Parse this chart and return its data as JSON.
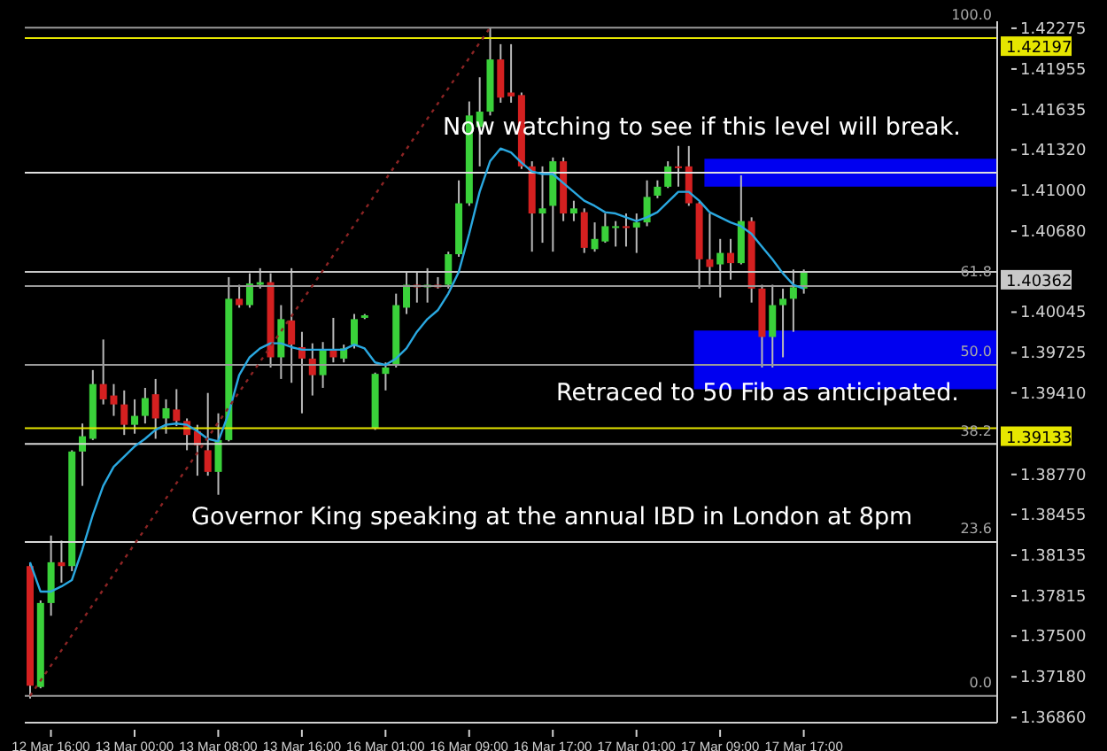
{
  "chart_data": {
    "type": "candlestick",
    "categories": [
      null,
      null,
      "12 Mar 16:00",
      null,
      null,
      null,
      null,
      null,
      null,
      null,
      "13 Mar 00:00",
      null,
      null,
      null,
      null,
      null,
      null,
      null,
      "13 Mar 08:00",
      null,
      null,
      null,
      null,
      null,
      null,
      null,
      "13 Mar 16:00",
      null,
      null,
      null,
      null,
      null,
      null,
      null,
      "16 Mar 01:00",
      null,
      null,
      null,
      null,
      null,
      null,
      null,
      "16 Mar 09:00",
      null,
      null,
      null,
      null,
      null,
      null,
      null,
      "16 Mar 17:00",
      null,
      null,
      null,
      null,
      null,
      null,
      null,
      "17 Mar 01:00",
      null,
      null,
      null,
      null,
      null,
      null,
      null,
      "17 Mar 09:00",
      null,
      null,
      null,
      null,
      null,
      null,
      null,
      "17 Mar 17:00",
      null,
      null,
      null,
      null,
      null,
      null,
      null,
      null,
      null,
      null,
      null,
      null,
      null,
      null,
      null,
      null,
      null,
      null
    ],
    "ohlc": [
      [
        1.3805,
        1.3808,
        1.3701,
        1.3711
      ],
      [
        1.371,
        1.3778,
        1.3709,
        1.3776
      ],
      [
        1.3776,
        1.3829,
        1.3766,
        1.3808
      ],
      [
        1.3808,
        1.3825,
        1.3792,
        1.3805
      ],
      [
        1.3805,
        1.3896,
        1.3801,
        1.3895
      ],
      [
        1.3895,
        1.3917,
        1.3868,
        1.3907
      ],
      [
        1.3905,
        1.3959,
        1.3904,
        1.3948
      ],
      [
        1.3948,
        1.3983,
        1.3932,
        1.3936
      ],
      [
        1.3939,
        1.3948,
        1.3923,
        1.3932
      ],
      [
        1.3932,
        1.3943,
        1.3908,
        1.3916
      ],
      [
        1.3916,
        1.3936,
        1.3909,
        1.3923
      ],
      [
        1.3923,
        1.3945,
        1.3917,
        1.3937
      ],
      [
        1.394,
        1.3952,
        1.3905,
        1.3921
      ],
      [
        1.3921,
        1.3936,
        1.3909,
        1.3929
      ],
      [
        1.3928,
        1.3944,
        1.3915,
        1.3919
      ],
      [
        1.3919,
        1.3921,
        1.3896,
        1.3908
      ],
      [
        1.3911,
        1.3916,
        1.3876,
        1.39
      ],
      [
        1.3896,
        1.3941,
        1.3876,
        1.3879
      ],
      [
        1.3879,
        1.3925,
        1.3861,
        1.3904
      ],
      [
        1.3904,
        1.4032,
        1.3903,
        1.4015
      ],
      [
        1.4015,
        1.4026,
        1.4008,
        1.401
      ],
      [
        1.401,
        1.4035,
        1.4008,
        1.4027
      ],
      [
        1.4026,
        1.4039,
        1.4023,
        1.4028
      ],
      [
        1.4028,
        1.4035,
        1.3961,
        1.3969
      ],
      [
        1.3969,
        1.401,
        1.3952,
        1.3999
      ],
      [
        1.3998,
        1.4039,
        1.3949,
        1.3979
      ],
      [
        1.3977,
        1.3989,
        1.3925,
        1.3968
      ],
      [
        1.3968,
        1.398,
        1.3939,
        1.3955
      ],
      [
        1.3955,
        1.3981,
        1.3945,
        1.3975
      ],
      [
        1.3975,
        1.4,
        1.3965,
        1.3969
      ],
      [
        1.3968,
        1.3979,
        1.3965,
        1.3976
      ],
      [
        1.3979,
        1.4003,
        1.3976,
        1.3999
      ],
      [
        1.4,
        1.4003,
        1.3999,
        1.4002
      ],
      [
        1.3913,
        1.3957,
        1.3912,
        1.3956
      ],
      [
        1.3956,
        1.3965,
        1.3943,
        1.3961
      ],
      [
        1.3963,
        1.4019,
        1.3961,
        1.401
      ],
      [
        1.4008,
        1.4036,
        1.4003,
        1.4026
      ],
      [
        1.4026,
        1.4036,
        1.4012,
        1.4024
      ],
      [
        1.4024,
        1.4039,
        1.4012,
        1.4026
      ],
      [
        1.4026,
        1.4032,
        1.4023,
        1.4024
      ],
      [
        1.4026,
        1.4052,
        1.4023,
        1.405
      ],
      [
        1.405,
        1.4108,
        1.4048,
        1.409
      ],
      [
        1.409,
        1.417,
        1.4088,
        1.4159
      ],
      [
        1.415,
        1.4189,
        1.4119,
        1.4162
      ],
      [
        1.4162,
        1.4228,
        1.4159,
        1.4203
      ],
      [
        1.4203,
        1.4215,
        1.4169,
        1.4173
      ],
      [
        1.4177,
        1.4215,
        1.4169,
        1.4174
      ],
      [
        1.4175,
        1.4177,
        1.4117,
        1.4119
      ],
      [
        1.4119,
        1.4123,
        1.4052,
        1.4082
      ],
      [
        1.4082,
        1.4119,
        1.4059,
        1.4086
      ],
      [
        1.4088,
        1.4126,
        1.4052,
        1.4123
      ],
      [
        1.4123,
        1.4126,
        1.4076,
        1.4082
      ],
      [
        1.4082,
        1.4092,
        1.4076,
        1.4086
      ],
      [
        1.4083,
        1.4086,
        1.4051,
        1.4055
      ],
      [
        1.4054,
        1.4075,
        1.4052,
        1.4062
      ],
      [
        1.406,
        1.4082,
        1.4059,
        1.4072
      ],
      [
        1.4071,
        1.4076,
        1.4056,
        1.4072
      ],
      [
        1.4072,
        1.4082,
        1.4056,
        1.4071
      ],
      [
        1.4071,
        1.4082,
        1.4051,
        1.4075
      ],
      [
        1.4075,
        1.4108,
        1.4072,
        1.4095
      ],
      [
        1.4096,
        1.4108,
        1.4094,
        1.4103
      ],
      [
        1.4103,
        1.4123,
        1.4102,
        1.4119
      ],
      [
        1.4119,
        1.4135,
        1.4103,
        1.4118
      ],
      [
        1.4119,
        1.4135,
        1.4088,
        1.409
      ],
      [
        1.409,
        1.4091,
        1.4023,
        1.4046
      ],
      [
        1.4046,
        1.4082,
        1.4026,
        1.404
      ],
      [
        1.4042,
        1.4062,
        1.4016,
        1.4051
      ],
      [
        1.4051,
        1.4062,
        1.403,
        1.4043
      ],
      [
        1.4043,
        1.4112,
        1.4042,
        1.4076
      ],
      [
        1.4076,
        1.4079,
        1.4012,
        1.4023
      ],
      [
        1.4023,
        1.4026,
        1.3961,
        1.3985
      ],
      [
        1.3985,
        1.4026,
        1.3961,
        1.401
      ],
      [
        1.401,
        1.4023,
        1.3969,
        1.4015
      ],
      [
        1.4015,
        1.4038,
        1.3989,
        1.4024
      ],
      [
        1.4023,
        1.4038,
        1.4019,
        1.4036
      ],
      null,
      null,
      null,
      null,
      null,
      null,
      null,
      null,
      null,
      null,
      null,
      null,
      null,
      null,
      null,
      null,
      null,
      null
    ],
    "series": [
      {
        "type": "line",
        "color": "#2aa8e0",
        "line_style": "solid",
        "values": [
          1.3808,
          1.3785,
          1.3785,
          1.3789,
          1.3794,
          1.3818,
          1.3845,
          1.3868,
          1.3883,
          1.3891,
          1.3899,
          1.3905,
          1.3912,
          1.3916,
          1.3917,
          1.3916,
          1.3911,
          1.3905,
          1.3903,
          1.3925,
          1.3955,
          1.3969,
          1.3976,
          1.398,
          1.398,
          1.3977,
          1.3975,
          1.3975,
          1.3975,
          1.3975,
          1.3975,
          1.3979,
          1.3976,
          1.3965,
          1.3963,
          1.3968,
          1.3976,
          1.3989,
          1.3999,
          1.4006,
          1.4019,
          1.4036,
          1.4066,
          1.4099,
          1.4123,
          1.4133,
          1.413,
          1.4122,
          1.4115,
          1.4113,
          1.4113,
          1.4106,
          1.4099,
          1.4092,
          1.4088,
          1.4083,
          1.4082,
          1.4079,
          1.4076,
          1.4079,
          1.4083,
          1.4091,
          1.4099,
          1.4099,
          1.4092,
          1.4083,
          1.4079,
          1.4075,
          1.4072,
          1.4066,
          1.4056,
          1.4046,
          1.4035,
          1.4026,
          1.4023,
          null,
          null,
          null,
          null,
          null,
          null,
          null,
          null,
          null,
          null,
          null,
          null,
          null,
          null,
          null,
          null,
          null,
          null
        ]
      },
      {
        "type": "line",
        "color": "#8c2424",
        "line_style": "dotted",
        "values": [
          1.3703,
          null,
          null,
          null,
          null,
          null,
          null,
          null,
          null,
          null,
          null,
          null,
          null,
          null,
          null,
          null,
          null,
          null,
          null,
          null,
          null,
          null,
          null,
          null,
          null,
          null,
          null,
          null,
          null,
          null,
          null,
          null,
          null,
          null,
          null,
          null,
          null,
          null,
          null,
          null,
          null,
          null,
          null,
          null,
          1.4228,
          null,
          null,
          null,
          null,
          null,
          null,
          null,
          null,
          null,
          null,
          null,
          null,
          null,
          null,
          null,
          null,
          null,
          null,
          null,
          null,
          null,
          null,
          null,
          null,
          null,
          null,
          null,
          null,
          null,
          null,
          null,
          null,
          null,
          null,
          null,
          null,
          null,
          null,
          null,
          null,
          null,
          null,
          null,
          null,
          null,
          null,
          null,
          null
        ]
      }
    ],
    "ylim": [
      1.3682,
      1.4233
    ],
    "yticks": [
      1.42275,
      1.41955,
      1.41635,
      {
        "value": 1.4132,
        "label": "1.41320"
      },
      {
        "value": 1.41,
        "label": "1.41000"
      },
      {
        "value": 1.4068,
        "label": "1.40680"
      },
      1.40045,
      1.39725,
      {
        "value": 1.3941,
        "label": "1.39410"
      },
      {
        "value": 1.3877,
        "label": "1.38770"
      },
      1.38455,
      1.38135,
      1.37815,
      {
        "value": 1.375,
        "label": "1.37500"
      },
      {
        "value": 1.3718,
        "label": "1.37180"
      },
      {
        "value": 1.3686,
        "label": "1.36860"
      }
    ],
    "ref_lines": [
      {
        "axis": "y",
        "value": 1.4228,
        "color": "#9a9a9a"
      },
      {
        "axis": "y",
        "value": 1.42197,
        "label": "1.42197",
        "color": "#e6e600"
      },
      {
        "axis": "y",
        "value": 1.4114,
        "color": "#e0e0e0"
      },
      {
        "axis": "y",
        "value": 1.40362,
        "label": "1.40362",
        "color": "#c8c8c8"
      },
      {
        "axis": "y",
        "value": 1.4025,
        "color": "#9a9a9a"
      },
      {
        "axis": "y",
        "value": 1.3963,
        "color": "#9a9a9a"
      },
      {
        "axis": "y",
        "value": 1.39133,
        "label": "1.39133",
        "color": "#e6e600"
      },
      {
        "axis": "y",
        "value": 1.3901,
        "color": "#d8d8d8"
      },
      {
        "axis": "y",
        "value": 1.3824,
        "color": "#d8d8d8"
      },
      {
        "axis": "y",
        "value": 1.3703,
        "color": "#9a9a9a"
      }
    ],
    "bands": [
      {
        "axis": "y",
        "from": 1.4103,
        "to": 1.4125,
        "color": "#0000f0"
      },
      {
        "axis": "y",
        "from": 1.3944,
        "to": 1.399,
        "color": "#0000f0"
      }
    ],
    "annotations": [
      {
        "text": "Now watching to see if this level will break.",
        "y": 1.4114
      },
      {
        "text": "Retraced to 50 Fib as anticipated.",
        "y": 1.3963
      },
      "Governor King speaking at the annual IBD in London at 8pm",
      {
        "text": "100.0",
        "y": 1.4228
      },
      {
        "text": "61.8",
        "y": 1.4025
      },
      {
        "text": "50.0",
        "y": 1.3963
      },
      {
        "text": "38.2",
        "y": 1.3901
      },
      {
        "text": "23.6",
        "y": 1.3824
      },
      {
        "text": "0.0",
        "y": 1.3703
      }
    ],
    "marker": "none"
  }
}
